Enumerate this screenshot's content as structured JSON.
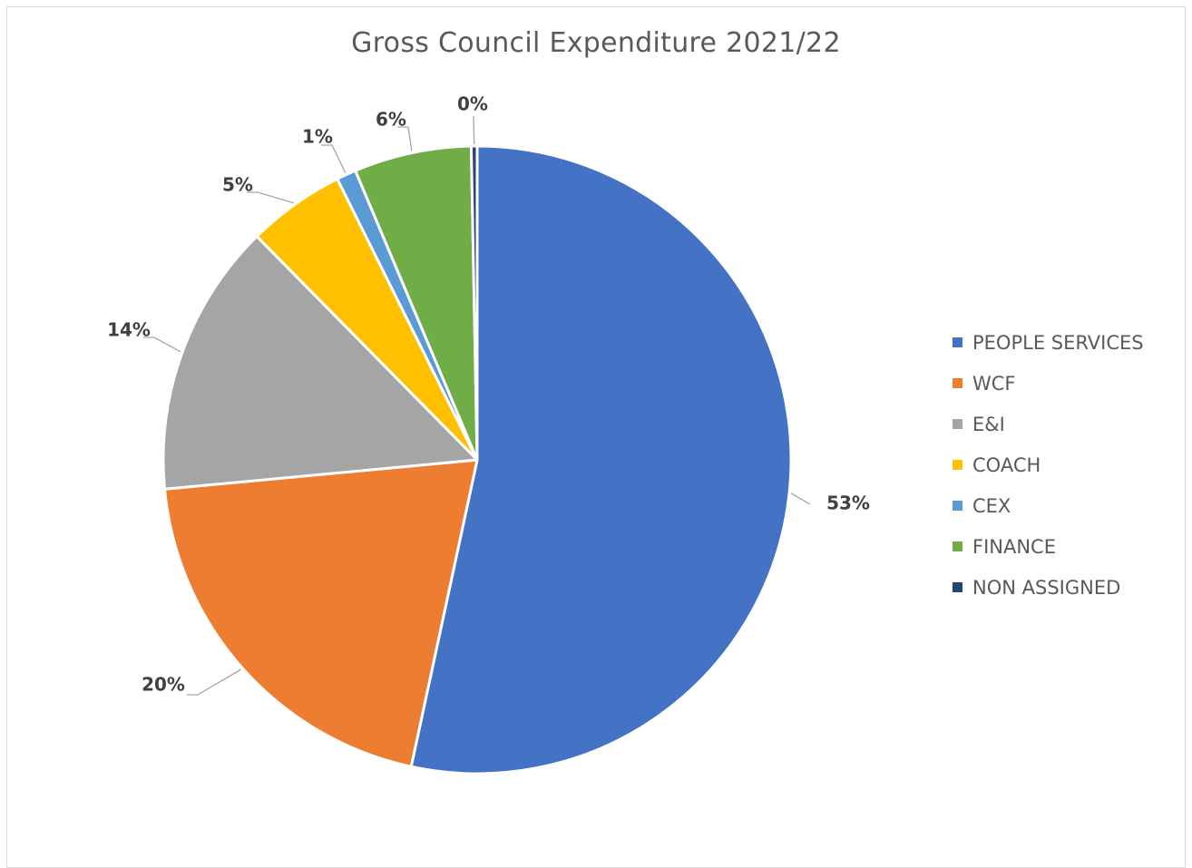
{
  "chart_data": {
    "type": "pie",
    "title": "Gross Council Expenditure 2021/22",
    "series": [
      {
        "name": "PEOPLE SERVICES",
        "value": 53,
        "label": "53%",
        "color": "#4472C4"
      },
      {
        "name": "WCF",
        "value": 20,
        "label": "20%",
        "color": "#ED7D31"
      },
      {
        "name": "E&I",
        "value": 14,
        "label": "14%",
        "color": "#A5A5A5"
      },
      {
        "name": "COACH",
        "value": 5,
        "label": "5%",
        "color": "#FFC000"
      },
      {
        "name": "CEX",
        "value": 1,
        "label": "1%",
        "color": "#5B9BD5"
      },
      {
        "name": "FINANCE",
        "value": 6,
        "label": "6%",
        "color": "#70AD47"
      },
      {
        "name": "NON ASSIGNED",
        "value": 0.3,
        "label": "0%",
        "color": "#264478"
      }
    ],
    "legend_position": "right",
    "data_labels": "outside-with-leader-lines"
  }
}
